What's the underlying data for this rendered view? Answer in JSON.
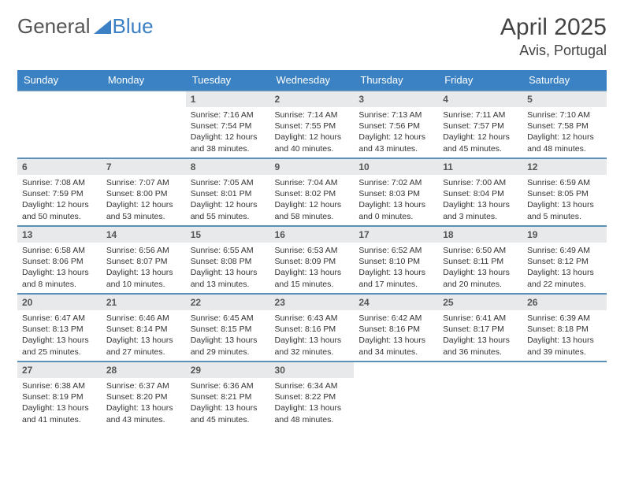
{
  "brand": {
    "part1": "General",
    "part2": "Blue"
  },
  "title": "April 2025",
  "location": "Avis, Portugal",
  "colors": {
    "header_bg": "#3b82c4",
    "header_text": "#ffffff",
    "row_border": "#5a8fb8",
    "daynum_bg": "#e8e9ea",
    "logo_gray": "#555555",
    "logo_blue": "#3b7fc4",
    "page_bg": "#ffffff"
  },
  "layout": {
    "columns": 7,
    "rows": 5,
    "first_day_column_index": 2
  },
  "weekdays": [
    "Sunday",
    "Monday",
    "Tuesday",
    "Wednesday",
    "Thursday",
    "Friday",
    "Saturday"
  ],
  "days": [
    {
      "n": "1",
      "sunrise": "Sunrise: 7:16 AM",
      "sunset": "Sunset: 7:54 PM",
      "day1": "Daylight: 12 hours",
      "day2": "and 38 minutes."
    },
    {
      "n": "2",
      "sunrise": "Sunrise: 7:14 AM",
      "sunset": "Sunset: 7:55 PM",
      "day1": "Daylight: 12 hours",
      "day2": "and 40 minutes."
    },
    {
      "n": "3",
      "sunrise": "Sunrise: 7:13 AM",
      "sunset": "Sunset: 7:56 PM",
      "day1": "Daylight: 12 hours",
      "day2": "and 43 minutes."
    },
    {
      "n": "4",
      "sunrise": "Sunrise: 7:11 AM",
      "sunset": "Sunset: 7:57 PM",
      "day1": "Daylight: 12 hours",
      "day2": "and 45 minutes."
    },
    {
      "n": "5",
      "sunrise": "Sunrise: 7:10 AM",
      "sunset": "Sunset: 7:58 PM",
      "day1": "Daylight: 12 hours",
      "day2": "and 48 minutes."
    },
    {
      "n": "6",
      "sunrise": "Sunrise: 7:08 AM",
      "sunset": "Sunset: 7:59 PM",
      "day1": "Daylight: 12 hours",
      "day2": "and 50 minutes."
    },
    {
      "n": "7",
      "sunrise": "Sunrise: 7:07 AM",
      "sunset": "Sunset: 8:00 PM",
      "day1": "Daylight: 12 hours",
      "day2": "and 53 minutes."
    },
    {
      "n": "8",
      "sunrise": "Sunrise: 7:05 AM",
      "sunset": "Sunset: 8:01 PM",
      "day1": "Daylight: 12 hours",
      "day2": "and 55 minutes."
    },
    {
      "n": "9",
      "sunrise": "Sunrise: 7:04 AM",
      "sunset": "Sunset: 8:02 PM",
      "day1": "Daylight: 12 hours",
      "day2": "and 58 minutes."
    },
    {
      "n": "10",
      "sunrise": "Sunrise: 7:02 AM",
      "sunset": "Sunset: 8:03 PM",
      "day1": "Daylight: 13 hours",
      "day2": "and 0 minutes."
    },
    {
      "n": "11",
      "sunrise": "Sunrise: 7:00 AM",
      "sunset": "Sunset: 8:04 PM",
      "day1": "Daylight: 13 hours",
      "day2": "and 3 minutes."
    },
    {
      "n": "12",
      "sunrise": "Sunrise: 6:59 AM",
      "sunset": "Sunset: 8:05 PM",
      "day1": "Daylight: 13 hours",
      "day2": "and 5 minutes."
    },
    {
      "n": "13",
      "sunrise": "Sunrise: 6:58 AM",
      "sunset": "Sunset: 8:06 PM",
      "day1": "Daylight: 13 hours",
      "day2": "and 8 minutes."
    },
    {
      "n": "14",
      "sunrise": "Sunrise: 6:56 AM",
      "sunset": "Sunset: 8:07 PM",
      "day1": "Daylight: 13 hours",
      "day2": "and 10 minutes."
    },
    {
      "n": "15",
      "sunrise": "Sunrise: 6:55 AM",
      "sunset": "Sunset: 8:08 PM",
      "day1": "Daylight: 13 hours",
      "day2": "and 13 minutes."
    },
    {
      "n": "16",
      "sunrise": "Sunrise: 6:53 AM",
      "sunset": "Sunset: 8:09 PM",
      "day1": "Daylight: 13 hours",
      "day2": "and 15 minutes."
    },
    {
      "n": "17",
      "sunrise": "Sunrise: 6:52 AM",
      "sunset": "Sunset: 8:10 PM",
      "day1": "Daylight: 13 hours",
      "day2": "and 17 minutes."
    },
    {
      "n": "18",
      "sunrise": "Sunrise: 6:50 AM",
      "sunset": "Sunset: 8:11 PM",
      "day1": "Daylight: 13 hours",
      "day2": "and 20 minutes."
    },
    {
      "n": "19",
      "sunrise": "Sunrise: 6:49 AM",
      "sunset": "Sunset: 8:12 PM",
      "day1": "Daylight: 13 hours",
      "day2": "and 22 minutes."
    },
    {
      "n": "20",
      "sunrise": "Sunrise: 6:47 AM",
      "sunset": "Sunset: 8:13 PM",
      "day1": "Daylight: 13 hours",
      "day2": "and 25 minutes."
    },
    {
      "n": "21",
      "sunrise": "Sunrise: 6:46 AM",
      "sunset": "Sunset: 8:14 PM",
      "day1": "Daylight: 13 hours",
      "day2": "and 27 minutes."
    },
    {
      "n": "22",
      "sunrise": "Sunrise: 6:45 AM",
      "sunset": "Sunset: 8:15 PM",
      "day1": "Daylight: 13 hours",
      "day2": "and 29 minutes."
    },
    {
      "n": "23",
      "sunrise": "Sunrise: 6:43 AM",
      "sunset": "Sunset: 8:16 PM",
      "day1": "Daylight: 13 hours",
      "day2": "and 32 minutes."
    },
    {
      "n": "24",
      "sunrise": "Sunrise: 6:42 AM",
      "sunset": "Sunset: 8:16 PM",
      "day1": "Daylight: 13 hours",
      "day2": "and 34 minutes."
    },
    {
      "n": "25",
      "sunrise": "Sunrise: 6:41 AM",
      "sunset": "Sunset: 8:17 PM",
      "day1": "Daylight: 13 hours",
      "day2": "and 36 minutes."
    },
    {
      "n": "26",
      "sunrise": "Sunrise: 6:39 AM",
      "sunset": "Sunset: 8:18 PM",
      "day1": "Daylight: 13 hours",
      "day2": "and 39 minutes."
    },
    {
      "n": "27",
      "sunrise": "Sunrise: 6:38 AM",
      "sunset": "Sunset: 8:19 PM",
      "day1": "Daylight: 13 hours",
      "day2": "and 41 minutes."
    },
    {
      "n": "28",
      "sunrise": "Sunrise: 6:37 AM",
      "sunset": "Sunset: 8:20 PM",
      "day1": "Daylight: 13 hours",
      "day2": "and 43 minutes."
    },
    {
      "n": "29",
      "sunrise": "Sunrise: 6:36 AM",
      "sunset": "Sunset: 8:21 PM",
      "day1": "Daylight: 13 hours",
      "day2": "and 45 minutes."
    },
    {
      "n": "30",
      "sunrise": "Sunrise: 6:34 AM",
      "sunset": "Sunset: 8:22 PM",
      "day1": "Daylight: 13 hours",
      "day2": "and 48 minutes."
    }
  ]
}
